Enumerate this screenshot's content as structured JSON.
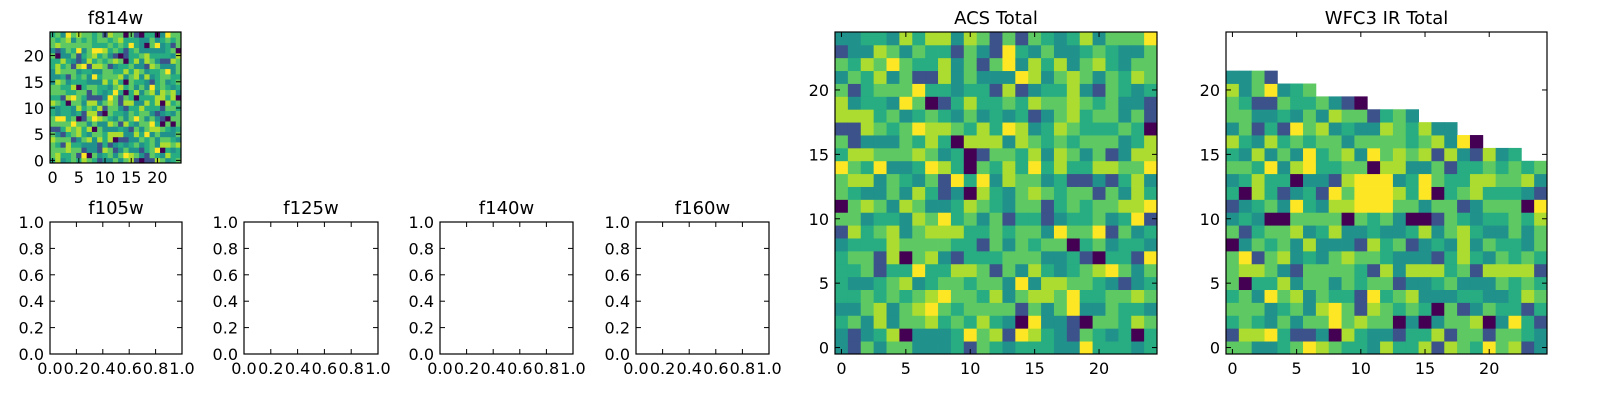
{
  "chart_data": [
    {
      "type": "heatmap",
      "title": "f814w",
      "xlabel": "",
      "ylabel": "",
      "xlim": [
        -0.5,
        24.5
      ],
      "ylim": [
        -0.5,
        24.5
      ],
      "xticks": [
        0,
        5,
        10,
        15,
        20
      ],
      "xtick_labels": [
        "0",
        "5",
        "10",
        "15",
        "20"
      ],
      "yticks": [
        0,
        5,
        10,
        15,
        20
      ],
      "ytick_labels": [
        "0",
        "5",
        "10",
        "15",
        "20"
      ],
      "grid_size": 25,
      "colormap": "viridis",
      "grid": false,
      "seed": 11
    },
    {
      "type": "empty",
      "title": "f105w",
      "xlim": [
        0,
        1
      ],
      "ylim": [
        0,
        1
      ],
      "xticks": [
        0,
        0.2,
        0.4,
        0.6,
        0.8,
        1.0
      ],
      "xtick_labels": [
        "0.0",
        "0.2",
        "0.4",
        "0.6",
        "0.8",
        "1.0"
      ],
      "yticks": [
        0,
        0.2,
        0.4,
        0.6,
        0.8,
        1.0
      ],
      "ytick_labels": [
        "0.0",
        "0.2",
        "0.4",
        "0.6",
        "0.8",
        "1.0"
      ],
      "grid": false
    },
    {
      "type": "empty",
      "title": "f125w",
      "xlim": [
        0,
        1
      ],
      "ylim": [
        0,
        1
      ],
      "xticks": [
        0,
        0.2,
        0.4,
        0.6,
        0.8,
        1.0
      ],
      "xtick_labels": [
        "0.0",
        "0.2",
        "0.4",
        "0.6",
        "0.8",
        "1.0"
      ],
      "yticks": [
        0,
        0.2,
        0.4,
        0.6,
        0.8,
        1.0
      ],
      "ytick_labels": [
        "0.0",
        "0.2",
        "0.4",
        "0.6",
        "0.8",
        "1.0"
      ],
      "grid": false
    },
    {
      "type": "empty",
      "title": "f140w",
      "xlim": [
        0,
        1
      ],
      "ylim": [
        0,
        1
      ],
      "xticks": [
        0,
        0.2,
        0.4,
        0.6,
        0.8,
        1.0
      ],
      "xtick_labels": [
        "0.0",
        "0.2",
        "0.4",
        "0.6",
        "0.8",
        "1.0"
      ],
      "yticks": [
        0,
        0.2,
        0.4,
        0.6,
        0.8,
        1.0
      ],
      "ytick_labels": [
        "0.0",
        "0.2",
        "0.4",
        "0.6",
        "0.8",
        "1.0"
      ],
      "grid": false
    },
    {
      "type": "empty",
      "title": "f160w",
      "xlim": [
        0,
        1
      ],
      "ylim": [
        0,
        1
      ],
      "xticks": [
        0,
        0.2,
        0.4,
        0.6,
        0.8,
        1.0
      ],
      "xtick_labels": [
        "0.0",
        "0.2",
        "0.4",
        "0.6",
        "0.8",
        "1.0"
      ],
      "yticks": [
        0,
        0.2,
        0.4,
        0.6,
        0.8,
        1.0
      ],
      "ytick_labels": [
        "0.0",
        "0.2",
        "0.4",
        "0.6",
        "0.8",
        "1.0"
      ],
      "grid": false
    },
    {
      "type": "heatmap",
      "title": "ACS Total",
      "xlabel": "",
      "ylabel": "",
      "xlim": [
        -0.5,
        24.5
      ],
      "ylim": [
        -0.5,
        24.5
      ],
      "xticks": [
        0,
        5,
        10,
        15,
        20
      ],
      "xtick_labels": [
        "0",
        "5",
        "10",
        "15",
        "20"
      ],
      "yticks": [
        0,
        5,
        10,
        15,
        20
      ],
      "ytick_labels": [
        "0",
        "5",
        "10",
        "15",
        "20"
      ],
      "grid_size": 25,
      "colormap": "viridis",
      "grid": false,
      "seed": 29
    },
    {
      "type": "heatmap",
      "title": "WFC3 IR Total",
      "xlabel": "",
      "ylabel": "",
      "xlim": [
        -0.5,
        24.5
      ],
      "ylim": [
        -0.5,
        24.5
      ],
      "xticks": [
        0,
        5,
        10,
        15,
        20
      ],
      "xtick_labels": [
        "0",
        "5",
        "10",
        "15",
        "20"
      ],
      "yticks": [
        0,
        5,
        10,
        15,
        20
      ],
      "ytick_labels": [
        "0",
        "5",
        "10",
        "15",
        "20"
      ],
      "grid_size": 25,
      "colormap": "viridis",
      "grid": false,
      "seed": 47,
      "column_top_rows": [
        21,
        21,
        21,
        21,
        20,
        20,
        20,
        19,
        19,
        19,
        19,
        18,
        18,
        18,
        18,
        17,
        17,
        17,
        16,
        16,
        15,
        15,
        15,
        14,
        14
      ]
    }
  ]
}
